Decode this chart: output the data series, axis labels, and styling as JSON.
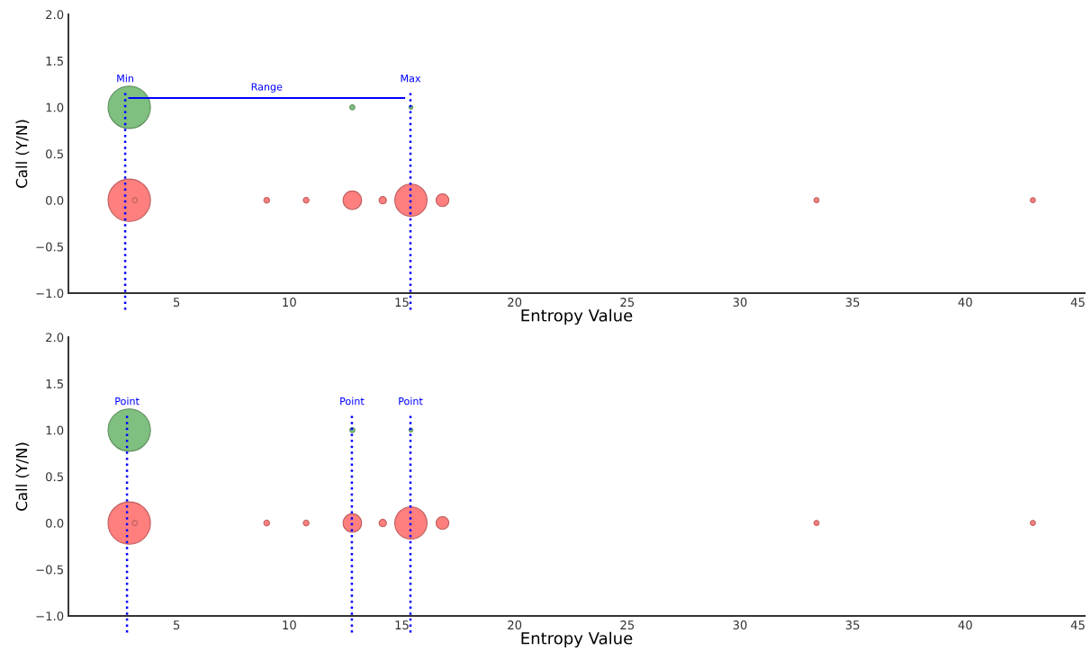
{
  "chart_data": [
    {
      "type": "bubble",
      "xlabel": "Entropy Value",
      "ylabel": "Call (Y/N)",
      "xlim": [
        0.2,
        45.3
      ],
      "ylim": [
        -1,
        2
      ],
      "xticks": [
        5,
        10,
        15,
        20,
        25,
        30,
        35,
        40,
        45
      ],
      "yticks": [
        {
          "value": -1,
          "label": "−1.0"
        },
        {
          "value": -0.5,
          "label": "−0.5"
        },
        {
          "value": 0,
          "label": "0.0"
        },
        {
          "value": 0.5,
          "label": "0.5"
        },
        {
          "value": 1,
          "label": "1.0"
        },
        {
          "value": 1.5,
          "label": "1.5"
        },
        {
          "value": 2,
          "label": "2.0"
        }
      ],
      "grid": false,
      "series": [
        {
          "color": "#7fbf7f",
          "x": [
            2.9,
            12.8,
            15.4
          ],
          "values": [
            1,
            1,
            1
          ],
          "sizes": [
            1,
            0.014,
            0.008
          ]
        },
        {
          "color": "#ff7f7f",
          "x": [
            2.9,
            3.15,
            9.0,
            10.75,
            12.8,
            14.15,
            15.4,
            16.8,
            33.4,
            43.0
          ],
          "values": [
            0,
            0,
            0,
            0,
            0,
            0,
            0,
            0,
            0,
            0
          ],
          "sizes": [
            1,
            0.014,
            0.018,
            0.018,
            0.19,
            0.03,
            0.58,
            0.09,
            0.014,
            0.014
          ]
        },
        {
          "type": "line",
          "color": "#0000ff",
          "x": [
            2.9,
            15.1
          ],
          "values": [
            1.1,
            1.1
          ]
        }
      ],
      "ref_lines": [
        {
          "axis": "x",
          "value": 2.72,
          "label": "Min",
          "color": "#0000ff",
          "line_style": "dotted"
        },
        {
          "axis": "x",
          "value": 15.38,
          "label": "Max",
          "color": "#0000ff",
          "line_style": "dotted"
        }
      ],
      "annotations": [
        {
          "text": "Range",
          "x": 9.0,
          "y": 1.1
        }
      ]
    },
    {
      "type": "bubble",
      "xlabel": "Entropy Value",
      "ylabel": "Call (Y/N)",
      "xlim": [
        0.2,
        45.3
      ],
      "ylim": [
        -1,
        2
      ],
      "xticks": [
        5,
        10,
        15,
        20,
        25,
        30,
        35,
        40,
        45
      ],
      "yticks": [
        {
          "value": -1,
          "label": "−1.0"
        },
        {
          "value": -0.5,
          "label": "−0.5"
        },
        {
          "value": 0,
          "label": "0.0"
        },
        {
          "value": 0.5,
          "label": "0.5"
        },
        {
          "value": 1,
          "label": "1.0"
        },
        {
          "value": 1.5,
          "label": "1.5"
        },
        {
          "value": 2,
          "label": "2.0"
        }
      ],
      "grid": false,
      "series": [
        {
          "color": "#7fbf7f",
          "x": [
            2.9,
            12.8,
            15.4
          ],
          "values": [
            1,
            1,
            1
          ],
          "sizes": [
            1,
            0.014,
            0.008
          ]
        },
        {
          "color": "#ff7f7f",
          "x": [
            2.9,
            3.15,
            9.0,
            10.75,
            12.8,
            14.15,
            15.4,
            16.8,
            33.4,
            43.0
          ],
          "values": [
            0,
            0,
            0,
            0,
            0,
            0,
            0,
            0,
            0,
            0
          ],
          "sizes": [
            1,
            0.014,
            0.018,
            0.018,
            0.19,
            0.03,
            0.58,
            0.09,
            0.014,
            0.014
          ]
        }
      ],
      "ref_lines": [
        {
          "axis": "x",
          "value": 2.8,
          "label": "Point",
          "color": "#0000ff",
          "line_style": "dotted"
        },
        {
          "axis": "x",
          "value": 12.78,
          "label": "Point",
          "color": "#0000ff",
          "line_style": "dotted"
        },
        {
          "axis": "x",
          "value": 15.38,
          "label": "Point",
          "color": "#0000ff",
          "line_style": "dotted"
        }
      ]
    }
  ]
}
